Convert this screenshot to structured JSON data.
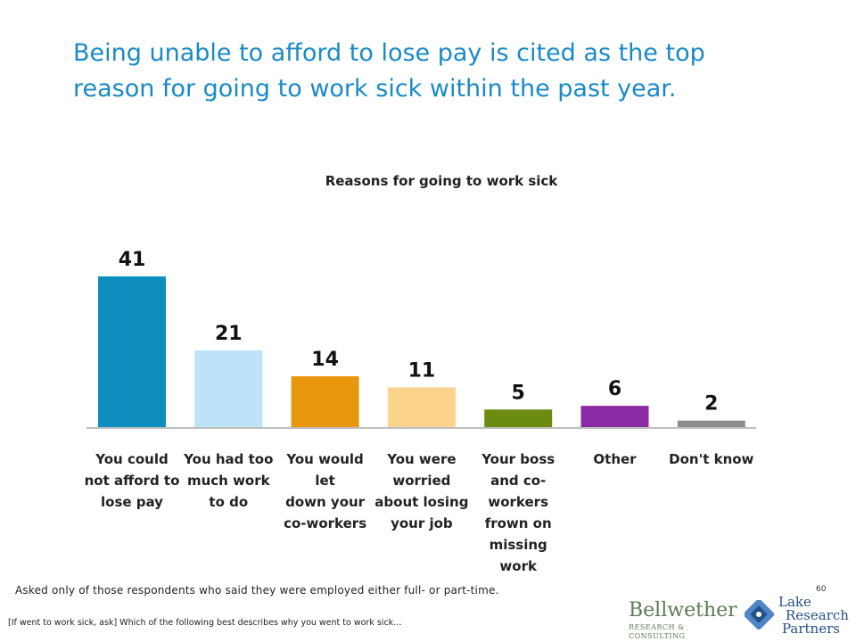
{
  "slide": {
    "headline_line1": "Being unable to afford to lose pay is cited as the top",
    "headline_line2": "reason for going to work sick within the past year.",
    "footnote": "Asked only of those respondents who said they were employed either full- or part-time.",
    "question": "[If went to work sick, ask] Which of the following best describes why you went to work sick…",
    "page_number": "60"
  },
  "logos": {
    "bellwether_name": "Bellwether",
    "bellwether_sub": "RESEARCH & CONSULTING",
    "lrp_line1": "Lake",
    "lrp_line2": "Research",
    "lrp_line3": "Partners"
  },
  "chart_data": {
    "type": "bar",
    "title": "Reasons for going to work sick",
    "xlabel": "",
    "ylabel": "",
    "ylim": [
      0,
      41
    ],
    "grid": false,
    "legend": "none",
    "categories": [
      [
        "You could",
        "not afford to",
        "lose pay"
      ],
      [
        "You had too",
        "much work",
        "to do"
      ],
      [
        "You would let",
        "down your",
        "co-workers"
      ],
      [
        "You were",
        "worried",
        "about losing",
        "your job"
      ],
      [
        "Your boss",
        "and co-",
        "workers",
        "frown on",
        "missing work"
      ],
      [
        "Other"
      ],
      [
        "Don't know"
      ]
    ],
    "values": [
      41,
      21,
      14,
      11,
      5,
      6,
      2
    ],
    "value_labels": [
      "41",
      "21",
      "14",
      "11",
      "5",
      "6",
      "2"
    ],
    "colors": [
      "#0e8ebf",
      "#bde3f8",
      "#e8960e",
      "#fcd48d",
      "#6b8c10",
      "#8a2aa4",
      "#8c8c8c"
    ],
    "axis_color": "#bfbfbf"
  }
}
